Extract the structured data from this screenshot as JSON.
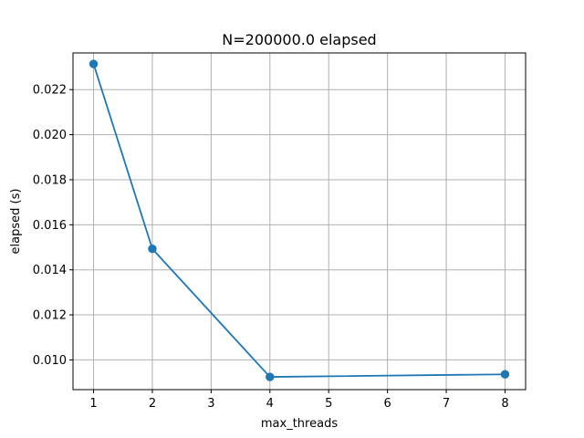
{
  "chart_data": {
    "type": "line",
    "title": "N=200000.0 elapsed",
    "xlabel": "max_threads",
    "ylabel": "elapsed (s)",
    "xlim": [
      0.65,
      8.35
    ],
    "ylim": [
      0.00868,
      0.02363
    ],
    "grid": true,
    "x_ticks": [
      1,
      2,
      3,
      4,
      5,
      6,
      7,
      8
    ],
    "y_ticks": [
      0.01,
      0.012,
      0.014,
      0.016,
      0.018,
      0.02,
      0.022
    ],
    "y_tick_labels": [
      "0.010",
      "0.012",
      "0.014",
      "0.016",
      "0.018",
      "0.020",
      "0.022"
    ],
    "series": [
      {
        "color": "#1f77b4",
        "marker": "circle",
        "x": [
          1,
          2,
          4,
          8
        ],
        "y": [
          0.02314,
          0.01493,
          0.009245,
          0.00936
        ]
      }
    ]
  }
}
